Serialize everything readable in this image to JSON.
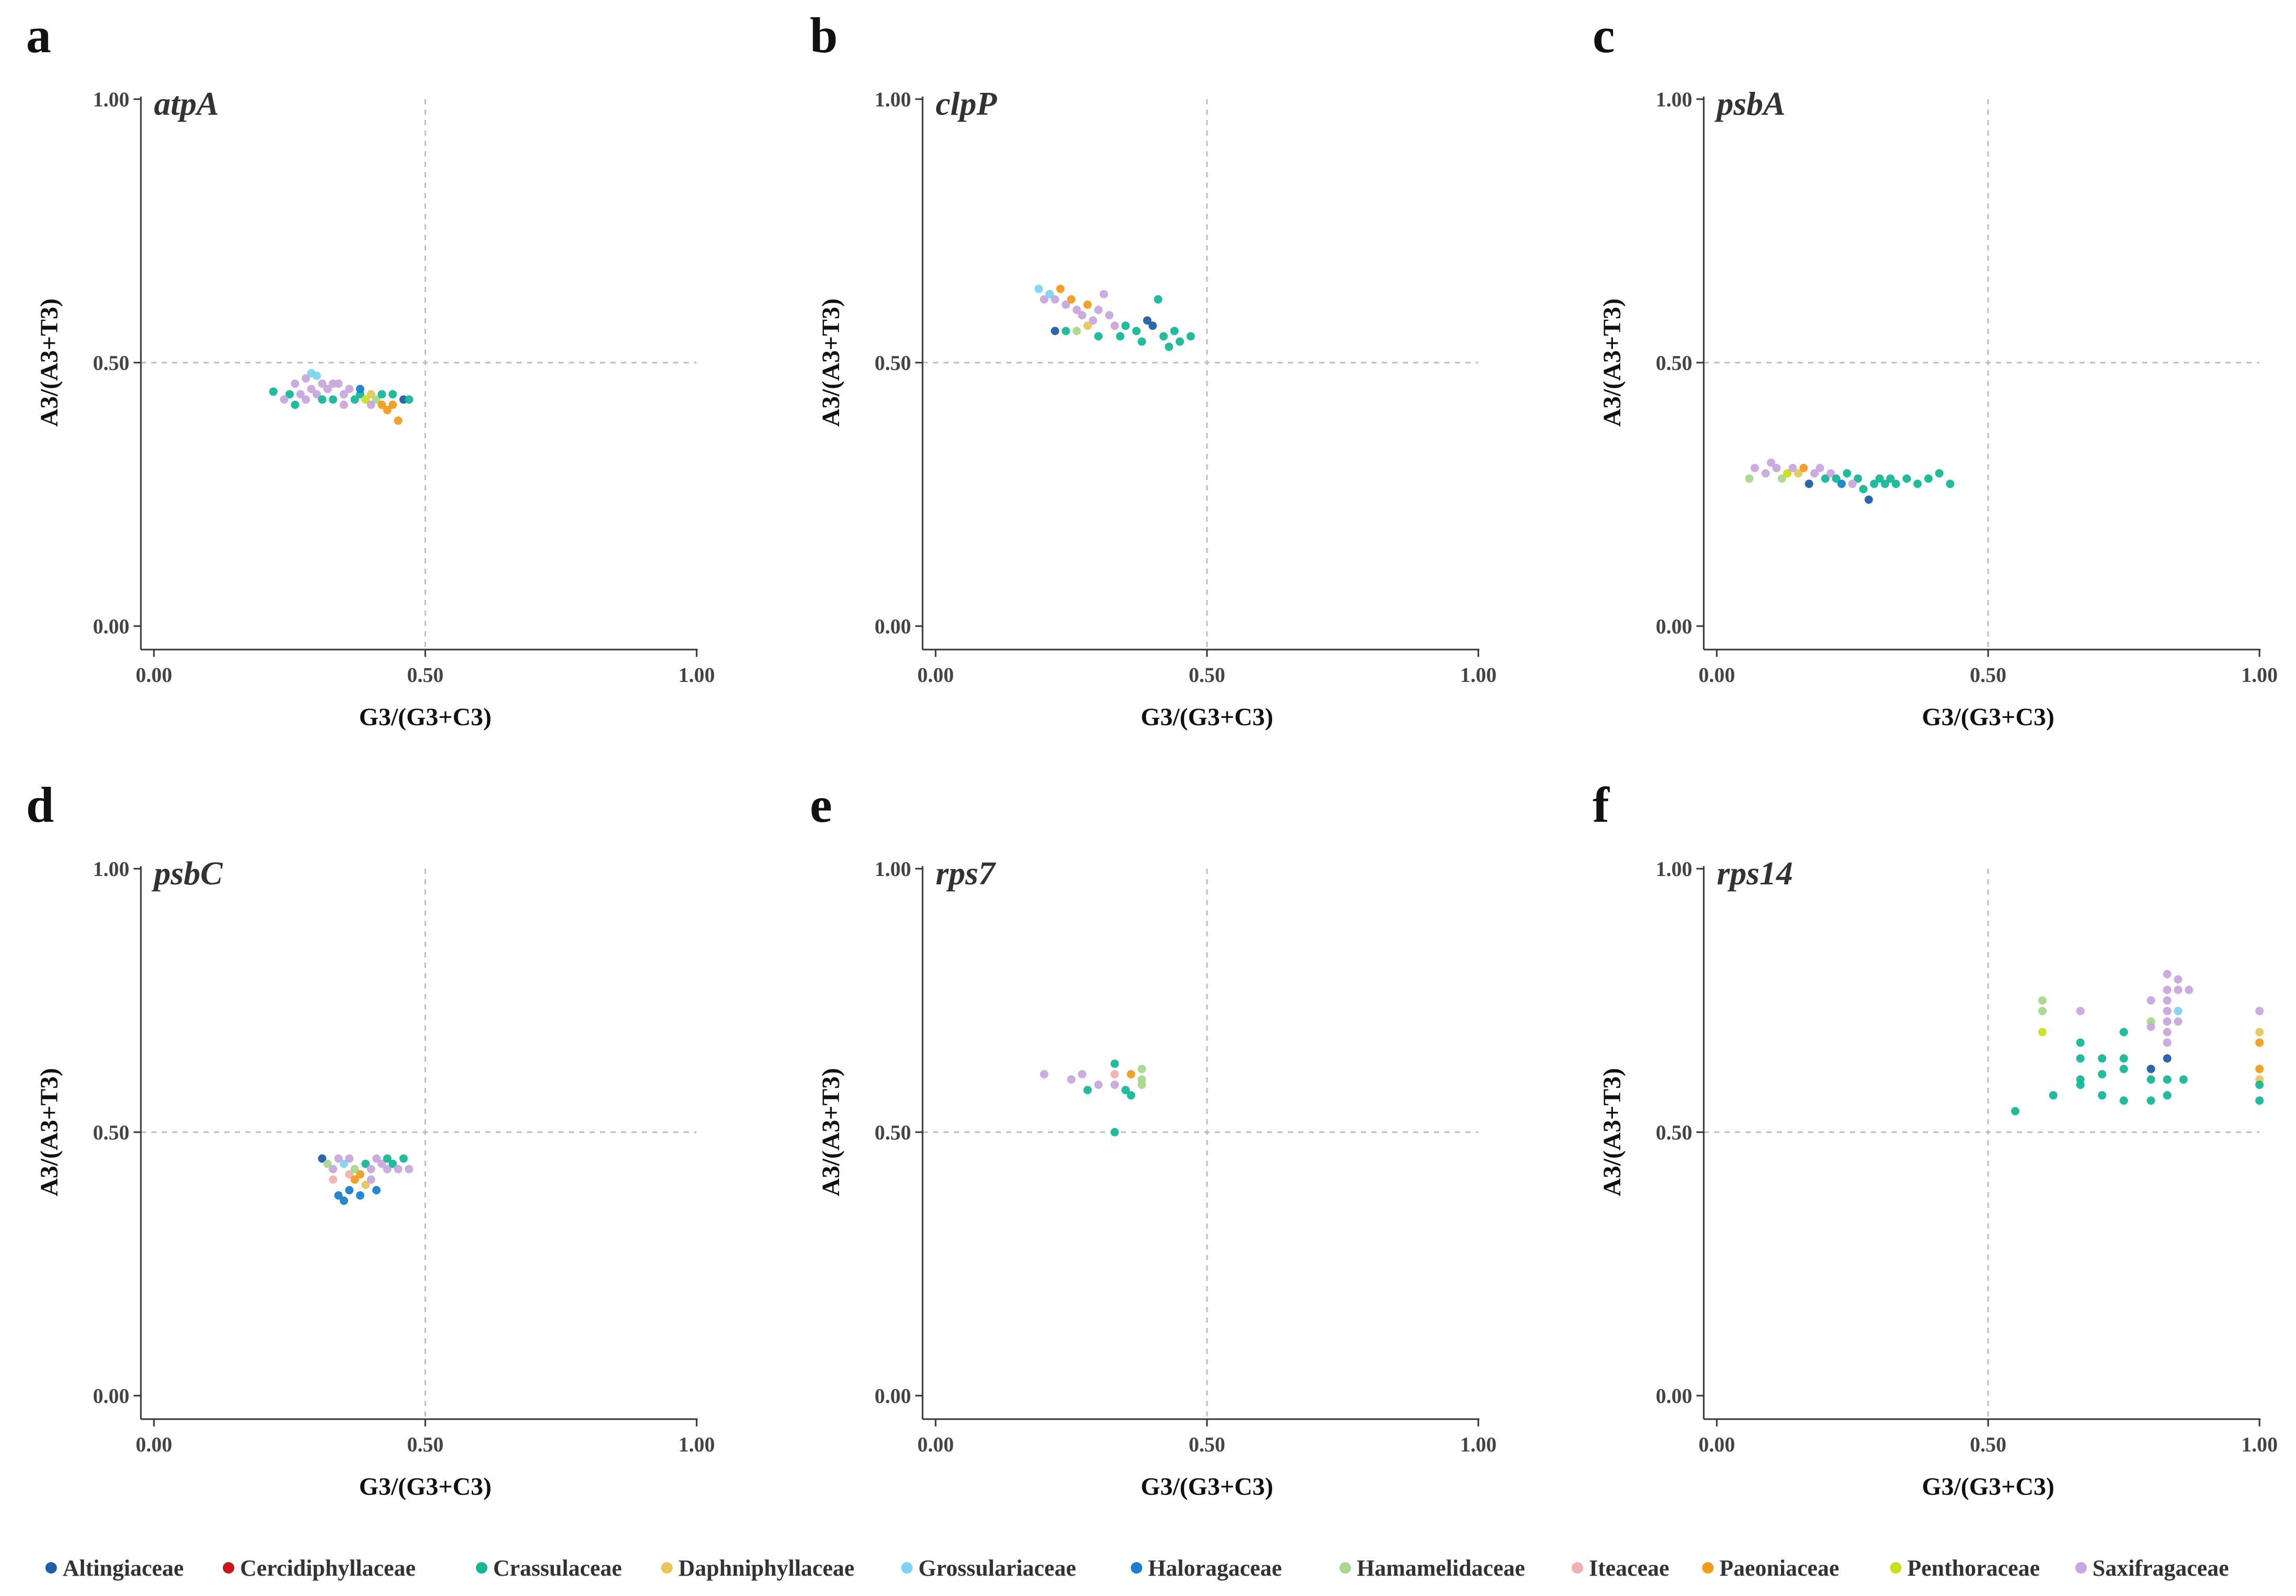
{
  "legend": [
    {
      "name": "Altingiaceae",
      "color": "#1f5fa8"
    },
    {
      "name": "Cercidiphyllaceae",
      "color": "#c8161d"
    },
    {
      "name": "Crassulaceae",
      "color": "#14b896"
    },
    {
      "name": "Daphniphyllaceae",
      "color": "#e6c75c"
    },
    {
      "name": "Grossulariaceae",
      "color": "#7fd3f0"
    },
    {
      "name": "Haloragaceae",
      "color": "#1a7fd0"
    },
    {
      "name": "Hamamelidaceae",
      "color": "#a8d98a"
    },
    {
      "name": "Iteaceae",
      "color": "#f4b0b0"
    },
    {
      "name": "Paeoniaceae",
      "color": "#f39c1b"
    },
    {
      "name": "Penthoraceae",
      "color": "#c8e01a"
    },
    {
      "name": "Saxifragaceae",
      "color": "#c8a8dc"
    }
  ],
  "chart_data": [
    {
      "type": "scatter",
      "panel": "a",
      "title": "atpA",
      "xlabel": "G3/(G3+C3)",
      "ylabel": "A3/(A3+T3)",
      "xlim": [
        0,
        1
      ],
      "ylim": [
        0,
        1
      ],
      "xticks": [
        "0.00",
        "0.50",
        "1.00"
      ],
      "yticks": [
        "0.00",
        "0.50",
        "1.00"
      ],
      "points": [
        [
          0.22,
          0.445,
          "Crassulaceae"
        ],
        [
          0.25,
          0.44,
          "Crassulaceae"
        ],
        [
          0.26,
          0.42,
          "Crassulaceae"
        ],
        [
          0.27,
          0.44,
          "Saxifragaceae"
        ],
        [
          0.28,
          0.47,
          "Saxifragaceae"
        ],
        [
          0.29,
          0.48,
          "Grossulariaceae"
        ],
        [
          0.3,
          0.475,
          "Grossulariaceae"
        ],
        [
          0.31,
          0.46,
          "Saxifragaceae"
        ],
        [
          0.3,
          0.44,
          "Saxifragaceae"
        ],
        [
          0.32,
          0.45,
          "Saxifragaceae"
        ],
        [
          0.33,
          0.43,
          "Crassulaceae"
        ],
        [
          0.34,
          0.46,
          "Saxifragaceae"
        ],
        [
          0.35,
          0.44,
          "Saxifragaceae"
        ],
        [
          0.36,
          0.45,
          "Saxifragaceae"
        ],
        [
          0.37,
          0.43,
          "Crassulaceae"
        ],
        [
          0.38,
          0.44,
          "Crassulaceae"
        ],
        [
          0.39,
          0.43,
          "Penthoraceae"
        ],
        [
          0.4,
          0.44,
          "Daphniphyllaceae"
        ],
        [
          0.41,
          0.43,
          "Hamamelidaceae"
        ],
        [
          0.42,
          0.42,
          "Paeoniaceae"
        ],
        [
          0.43,
          0.41,
          "Paeoniaceae"
        ],
        [
          0.44,
          0.42,
          "Paeoniaceae"
        ],
        [
          0.45,
          0.39,
          "Paeoniaceae"
        ],
        [
          0.46,
          0.43,
          "Altingiaceae"
        ],
        [
          0.47,
          0.43,
          "Crassulaceae"
        ],
        [
          0.26,
          0.46,
          "Saxifragaceae"
        ],
        [
          0.28,
          0.43,
          "Saxifragaceae"
        ],
        [
          0.33,
          0.46,
          "Saxifragaceae"
        ],
        [
          0.38,
          0.45,
          "Haloragaceae"
        ],
        [
          0.42,
          0.44,
          "Crassulaceae"
        ],
        [
          0.35,
          0.42,
          "Saxifragaceae"
        ],
        [
          0.4,
          0.42,
          "Saxifragaceae"
        ],
        [
          0.24,
          0.43,
          "Saxifragaceae"
        ],
        [
          0.29,
          0.45,
          "Saxifragaceae"
        ],
        [
          0.31,
          0.43,
          "Crassulaceae"
        ],
        [
          0.44,
          0.44,
          "Crassulaceae"
        ]
      ]
    },
    {
      "type": "scatter",
      "panel": "b",
      "title": "clpP",
      "xlabel": "G3/(G3+C3)",
      "ylabel": "A3/(A3+T3)",
      "xlim": [
        0,
        1
      ],
      "ylim": [
        0,
        1
      ],
      "xticks": [
        "0.00",
        "0.50",
        "1.00"
      ],
      "yticks": [
        "0.00",
        "0.50",
        "1.00"
      ],
      "points": [
        [
          0.19,
          0.64,
          "Grossulariaceae"
        ],
        [
          0.21,
          0.63,
          "Grossulariaceae"
        ],
        [
          0.22,
          0.62,
          "Saxifragaceae"
        ],
        [
          0.23,
          0.64,
          "Paeoniaceae"
        ],
        [
          0.24,
          0.61,
          "Saxifragaceae"
        ],
        [
          0.25,
          0.62,
          "Paeoniaceae"
        ],
        [
          0.26,
          0.6,
          "Saxifragaceae"
        ],
        [
          0.27,
          0.59,
          "Saxifragaceae"
        ],
        [
          0.28,
          0.61,
          "Paeoniaceae"
        ],
        [
          0.29,
          0.58,
          "Saxifragaceae"
        ],
        [
          0.3,
          0.6,
          "Saxifragaceae"
        ],
        [
          0.31,
          0.63,
          "Saxifragaceae"
        ],
        [
          0.32,
          0.59,
          "Saxifragaceae"
        ],
        [
          0.33,
          0.57,
          "Saxifragaceae"
        ],
        [
          0.26,
          0.56,
          "Hamamelidaceae"
        ],
        [
          0.28,
          0.57,
          "Daphniphyllaceae"
        ],
        [
          0.24,
          0.56,
          "Crassulaceae"
        ],
        [
          0.22,
          0.56,
          "Altingiaceae"
        ],
        [
          0.3,
          0.55,
          "Crassulaceae"
        ],
        [
          0.35,
          0.57,
          "Crassulaceae"
        ],
        [
          0.37,
          0.56,
          "Crassulaceae"
        ],
        [
          0.39,
          0.58,
          "Altingiaceae"
        ],
        [
          0.4,
          0.57,
          "Altingiaceae"
        ],
        [
          0.41,
          0.62,
          "Crassulaceae"
        ],
        [
          0.42,
          0.55,
          "Crassulaceae"
        ],
        [
          0.43,
          0.53,
          "Crassulaceae"
        ],
        [
          0.44,
          0.56,
          "Crassulaceae"
        ],
        [
          0.45,
          0.54,
          "Crassulaceae"
        ],
        [
          0.47,
          0.55,
          "Crassulaceae"
        ],
        [
          0.38,
          0.54,
          "Crassulaceae"
        ],
        [
          0.34,
          0.55,
          "Crassulaceae"
        ],
        [
          0.2,
          0.62,
          "Saxifragaceae"
        ]
      ]
    },
    {
      "type": "scatter",
      "panel": "c",
      "title": "psbA",
      "xlabel": "G3/(G3+C3)",
      "ylabel": "A3/(A3+T3)",
      "xlim": [
        0,
        1
      ],
      "ylim": [
        0,
        1
      ],
      "xticks": [
        "0.00",
        "0.50",
        "1.00"
      ],
      "yticks": [
        "0.00",
        "0.50",
        "1.00"
      ],
      "points": [
        [
          0.06,
          0.28,
          "Hamamelidaceae"
        ],
        [
          0.07,
          0.3,
          "Saxifragaceae"
        ],
        [
          0.09,
          0.29,
          "Saxifragaceae"
        ],
        [
          0.1,
          0.31,
          "Saxifragaceae"
        ],
        [
          0.11,
          0.3,
          "Saxifragaceae"
        ],
        [
          0.12,
          0.28,
          "Hamamelidaceae"
        ],
        [
          0.13,
          0.29,
          "Penthoraceae"
        ],
        [
          0.14,
          0.3,
          "Saxifragaceae"
        ],
        [
          0.15,
          0.29,
          "Daphniphyllaceae"
        ],
        [
          0.16,
          0.3,
          "Paeoniaceae"
        ],
        [
          0.17,
          0.27,
          "Altingiaceae"
        ],
        [
          0.18,
          0.29,
          "Saxifragaceae"
        ],
        [
          0.19,
          0.3,
          "Saxifragaceae"
        ],
        [
          0.2,
          0.28,
          "Crassulaceae"
        ],
        [
          0.21,
          0.29,
          "Saxifragaceae"
        ],
        [
          0.22,
          0.28,
          "Crassulaceae"
        ],
        [
          0.23,
          0.27,
          "Haloragaceae"
        ],
        [
          0.24,
          0.29,
          "Crassulaceae"
        ],
        [
          0.26,
          0.28,
          "Crassulaceae"
        ],
        [
          0.27,
          0.26,
          "Crassulaceae"
        ],
        [
          0.28,
          0.24,
          "Altingiaceae"
        ],
        [
          0.29,
          0.27,
          "Crassulaceae"
        ],
        [
          0.3,
          0.28,
          "Crassulaceae"
        ],
        [
          0.31,
          0.27,
          "Crassulaceae"
        ],
        [
          0.32,
          0.28,
          "Crassulaceae"
        ],
        [
          0.33,
          0.27,
          "Crassulaceae"
        ],
        [
          0.35,
          0.28,
          "Crassulaceae"
        ],
        [
          0.37,
          0.27,
          "Crassulaceae"
        ],
        [
          0.39,
          0.28,
          "Crassulaceae"
        ],
        [
          0.41,
          0.29,
          "Crassulaceae"
        ],
        [
          0.43,
          0.27,
          "Crassulaceae"
        ],
        [
          0.25,
          0.27,
          "Saxifragaceae"
        ]
      ]
    },
    {
      "type": "scatter",
      "panel": "d",
      "title": "psbC",
      "xlabel": "G3/(G3+C3)",
      "ylabel": "A3/(A3+T3)",
      "xlim": [
        0,
        1
      ],
      "ylim": [
        0,
        1
      ],
      "xticks": [
        "0.00",
        "0.50",
        "1.00"
      ],
      "yticks": [
        "0.00",
        "0.50",
        "1.00"
      ],
      "points": [
        [
          0.31,
          0.45,
          "Altingiaceae"
        ],
        [
          0.32,
          0.44,
          "Hamamelidaceae"
        ],
        [
          0.33,
          0.43,
          "Saxifragaceae"
        ],
        [
          0.34,
          0.45,
          "Saxifragaceae"
        ],
        [
          0.35,
          0.44,
          "Grossulariaceae"
        ],
        [
          0.36,
          0.42,
          "Iteaceae"
        ],
        [
          0.37,
          0.41,
          "Paeoniaceae"
        ],
        [
          0.38,
          0.42,
          "Paeoniaceae"
        ],
        [
          0.39,
          0.44,
          "Crassulaceae"
        ],
        [
          0.4,
          0.43,
          "Saxifragaceae"
        ],
        [
          0.41,
          0.45,
          "Saxifragaceae"
        ],
        [
          0.42,
          0.44,
          "Saxifragaceae"
        ],
        [
          0.43,
          0.43,
          "Saxifragaceae"
        ],
        [
          0.44,
          0.44,
          "Crassulaceae"
        ],
        [
          0.45,
          0.43,
          "Saxifragaceae"
        ],
        [
          0.46,
          0.45,
          "Crassulaceae"
        ],
        [
          0.47,
          0.43,
          "Saxifragaceae"
        ],
        [
          0.34,
          0.38,
          "Haloragaceae"
        ],
        [
          0.35,
          0.37,
          "Haloragaceae"
        ],
        [
          0.36,
          0.39,
          "Haloragaceae"
        ],
        [
          0.38,
          0.38,
          "Haloragaceae"
        ],
        [
          0.41,
          0.39,
          "Haloragaceae"
        ],
        [
          0.39,
          0.4,
          "Daphniphyllaceae"
        ],
        [
          0.37,
          0.43,
          "Hamamelidaceae"
        ],
        [
          0.36,
          0.45,
          "Saxifragaceae"
        ],
        [
          0.43,
          0.45,
          "Crassulaceae"
        ],
        [
          0.4,
          0.41,
          "Saxifragaceae"
        ],
        [
          0.33,
          0.41,
          "Iteaceae"
        ]
      ]
    },
    {
      "type": "scatter",
      "panel": "e",
      "title": "rps7",
      "xlabel": "G3/(G3+C3)",
      "ylabel": "A3/(A3+T3)",
      "xlim": [
        0,
        1
      ],
      "ylim": [
        0,
        1
      ],
      "xticks": [
        "0.00",
        "0.50",
        "1.00"
      ],
      "yticks": [
        "0.00",
        "0.50",
        "1.00"
      ],
      "points": [
        [
          0.2,
          0.61,
          "Saxifragaceae"
        ],
        [
          0.25,
          0.6,
          "Saxifragaceae"
        ],
        [
          0.27,
          0.61,
          "Saxifragaceae"
        ],
        [
          0.28,
          0.58,
          "Crassulaceae"
        ],
        [
          0.3,
          0.59,
          "Saxifragaceae"
        ],
        [
          0.33,
          0.63,
          "Crassulaceae"
        ],
        [
          0.33,
          0.61,
          "Iteaceae"
        ],
        [
          0.33,
          0.59,
          "Saxifragaceae"
        ],
        [
          0.33,
          0.5,
          "Crassulaceae"
        ],
        [
          0.35,
          0.58,
          "Crassulaceae"
        ],
        [
          0.36,
          0.57,
          "Crassulaceae"
        ],
        [
          0.36,
          0.61,
          "Paeoniaceae"
        ],
        [
          0.38,
          0.62,
          "Hamamelidaceae"
        ],
        [
          0.38,
          0.6,
          "Hamamelidaceae"
        ],
        [
          0.38,
          0.59,
          "Hamamelidaceae"
        ]
      ]
    },
    {
      "type": "scatter",
      "panel": "f",
      "title": "rps14",
      "xlabel": "G3/(G3+C3)",
      "ylabel": "A3/(A3+T3)",
      "xlim": [
        0,
        1
      ],
      "ylim": [
        0,
        1
      ],
      "xticks": [
        "0.00",
        "0.50",
        "1.00"
      ],
      "yticks": [
        "0.00",
        "0.50",
        "1.00"
      ],
      "points": [
        [
          0.55,
          0.54,
          "Crassulaceae"
        ],
        [
          0.6,
          0.75,
          "Hamamelidaceae"
        ],
        [
          0.6,
          0.73,
          "Hamamelidaceae"
        ],
        [
          0.6,
          0.69,
          "Penthoraceae"
        ],
        [
          0.62,
          0.57,
          "Crassulaceae"
        ],
        [
          0.67,
          0.73,
          "Saxifragaceae"
        ],
        [
          0.67,
          0.67,
          "Crassulaceae"
        ],
        [
          0.67,
          0.64,
          "Crassulaceae"
        ],
        [
          0.67,
          0.6,
          "Crassulaceae"
        ],
        [
          0.67,
          0.59,
          "Crassulaceae"
        ],
        [
          0.71,
          0.64,
          "Crassulaceae"
        ],
        [
          0.71,
          0.61,
          "Crassulaceae"
        ],
        [
          0.71,
          0.57,
          "Crassulaceae"
        ],
        [
          0.75,
          0.69,
          "Crassulaceae"
        ],
        [
          0.75,
          0.64,
          "Crassulaceae"
        ],
        [
          0.75,
          0.62,
          "Crassulaceae"
        ],
        [
          0.75,
          0.56,
          "Crassulaceae"
        ],
        [
          0.8,
          0.75,
          "Saxifragaceae"
        ],
        [
          0.8,
          0.71,
          "Hamamelidaceae"
        ],
        [
          0.8,
          0.7,
          "Saxifragaceae"
        ],
        [
          0.8,
          0.62,
          "Altingiaceae"
        ],
        [
          0.8,
          0.6,
          "Crassulaceae"
        ],
        [
          0.8,
          0.56,
          "Crassulaceae"
        ],
        [
          0.83,
          0.8,
          "Saxifragaceae"
        ],
        [
          0.83,
          0.77,
          "Saxifragaceae"
        ],
        [
          0.83,
          0.75,
          "Saxifragaceae"
        ],
        [
          0.83,
          0.73,
          "Saxifragaceae"
        ],
        [
          0.83,
          0.71,
          "Saxifragaceae"
        ],
        [
          0.83,
          0.69,
          "Saxifragaceae"
        ],
        [
          0.83,
          0.67,
          "Saxifragaceae"
        ],
        [
          0.83,
          0.64,
          "Altingiaceae"
        ],
        [
          0.83,
          0.6,
          "Crassulaceae"
        ],
        [
          0.83,
          0.57,
          "Crassulaceae"
        ],
        [
          0.85,
          0.79,
          "Saxifragaceae"
        ],
        [
          0.85,
          0.77,
          "Saxifragaceae"
        ],
        [
          0.85,
          0.73,
          "Grossulariaceae"
        ],
        [
          0.85,
          0.71,
          "Saxifragaceae"
        ],
        [
          0.86,
          0.6,
          "Crassulaceae"
        ],
        [
          0.87,
          0.77,
          "Saxifragaceae"
        ],
        [
          1.0,
          0.73,
          "Saxifragaceae"
        ],
        [
          1.0,
          0.69,
          "Daphniphyllaceae"
        ],
        [
          1.0,
          0.67,
          "Paeoniaceae"
        ],
        [
          1.0,
          0.62,
          "Paeoniaceae"
        ],
        [
          1.0,
          0.6,
          "Daphniphyllaceae"
        ],
        [
          1.0,
          0.59,
          "Crassulaceae"
        ],
        [
          1.0,
          0.56,
          "Crassulaceae"
        ]
      ]
    }
  ]
}
